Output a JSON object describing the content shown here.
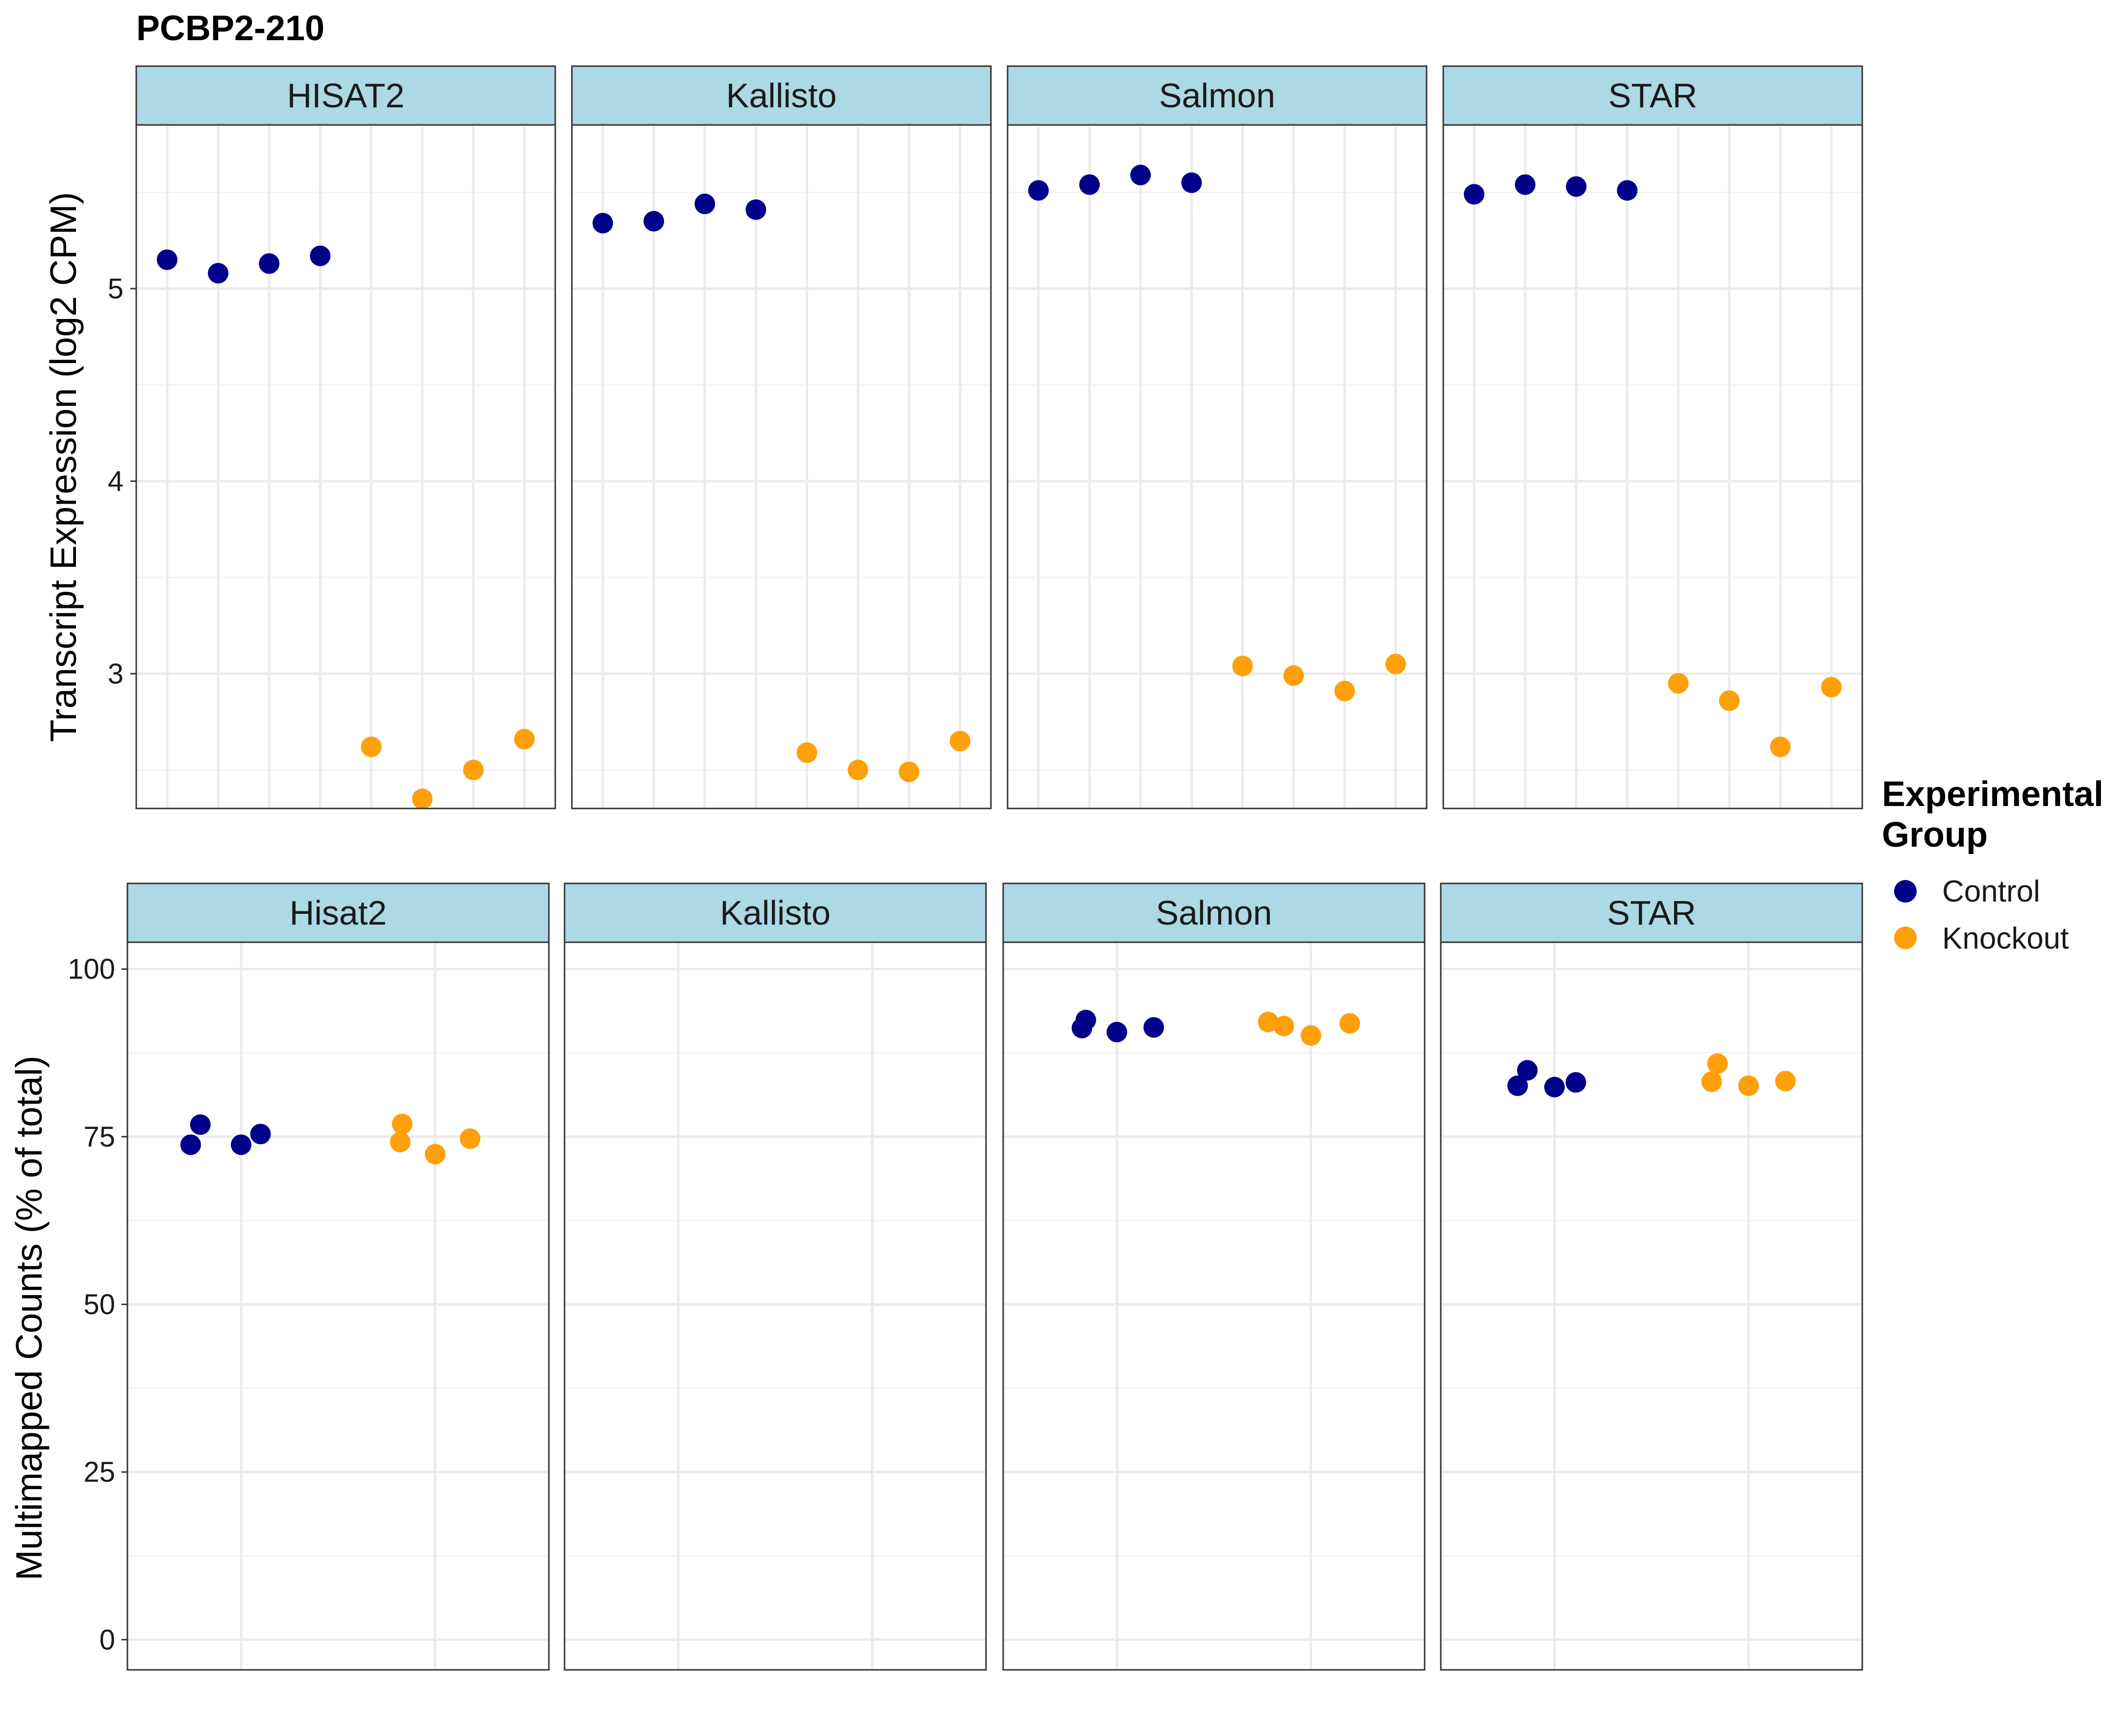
{
  "chart_data": {
    "type": "scatter",
    "title": "PCBP2-210",
    "colors": {
      "Control": "#00008B",
      "Knockout": "#FF9F0A"
    },
    "legend": {
      "title_lines": [
        "Experimental",
        "Group"
      ],
      "entries": [
        "Control",
        "Knockout"
      ],
      "placement": "right"
    },
    "grid": true,
    "rows": [
      {
        "ylabel": "Transcript Expression (log2 CPM)",
        "ylim": [
          2.3,
          5.85
        ],
        "yticks": [
          3,
          4,
          5
        ],
        "ytick_labels": [
          "3",
          "4",
          "5"
        ],
        "x_positions": 8,
        "panels": [
          {
            "strip": "HISAT2",
            "points": [
              {
                "x": 1,
                "y": 5.15,
                "group": "Control"
              },
              {
                "x": 2,
                "y": 5.08,
                "group": "Control"
              },
              {
                "x": 3,
                "y": 5.13,
                "group": "Control"
              },
              {
                "x": 4,
                "y": 5.17,
                "group": "Control"
              },
              {
                "x": 5,
                "y": 2.62,
                "group": "Knockout"
              },
              {
                "x": 6,
                "y": 2.35,
                "group": "Knockout"
              },
              {
                "x": 7,
                "y": 2.5,
                "group": "Knockout"
              },
              {
                "x": 8,
                "y": 2.66,
                "group": "Knockout"
              }
            ]
          },
          {
            "strip": "Kallisto",
            "points": [
              {
                "x": 1,
                "y": 5.34,
                "group": "Control"
              },
              {
                "x": 2,
                "y": 5.35,
                "group": "Control"
              },
              {
                "x": 3,
                "y": 5.44,
                "group": "Control"
              },
              {
                "x": 4,
                "y": 5.41,
                "group": "Control"
              },
              {
                "x": 5,
                "y": 2.59,
                "group": "Knockout"
              },
              {
                "x": 6,
                "y": 2.5,
                "group": "Knockout"
              },
              {
                "x": 7,
                "y": 2.49,
                "group": "Knockout"
              },
              {
                "x": 8,
                "y": 2.65,
                "group": "Knockout"
              }
            ]
          },
          {
            "strip": "Salmon",
            "points": [
              {
                "x": 1,
                "y": 5.51,
                "group": "Control"
              },
              {
                "x": 2,
                "y": 5.54,
                "group": "Control"
              },
              {
                "x": 3,
                "y": 5.59,
                "group": "Control"
              },
              {
                "x": 4,
                "y": 5.55,
                "group": "Control"
              },
              {
                "x": 5,
                "y": 3.04,
                "group": "Knockout"
              },
              {
                "x": 6,
                "y": 2.99,
                "group": "Knockout"
              },
              {
                "x": 7,
                "y": 2.91,
                "group": "Knockout"
              },
              {
                "x": 8,
                "y": 3.05,
                "group": "Knockout"
              }
            ]
          },
          {
            "strip": "STAR",
            "points": [
              {
                "x": 1,
                "y": 5.49,
                "group": "Control"
              },
              {
                "x": 2,
                "y": 5.54,
                "group": "Control"
              },
              {
                "x": 3,
                "y": 5.53,
                "group": "Control"
              },
              {
                "x": 4,
                "y": 5.51,
                "group": "Control"
              },
              {
                "x": 5,
                "y": 2.95,
                "group": "Knockout"
              },
              {
                "x": 6,
                "y": 2.86,
                "group": "Knockout"
              },
              {
                "x": 7,
                "y": 2.62,
                "group": "Knockout"
              },
              {
                "x": 8,
                "y": 2.93,
                "group": "Knockout"
              }
            ]
          }
        ]
      },
      {
        "ylabel": "Multimapped Counts (% of total)",
        "ylim": [
          -4.5,
          104
        ],
        "yticks": [
          0,
          25,
          50,
          75,
          100
        ],
        "ytick_labels": [
          "0",
          "25",
          "50",
          "75",
          "100"
        ],
        "x_positions": 2,
        "panels": [
          {
            "strip": "Hisat2",
            "points": [
              {
                "x": 0.74,
                "y": 73.8,
                "group": "Control"
              },
              {
                "x": 0.79,
                "y": 76.8,
                "group": "Control"
              },
              {
                "x": 1.0,
                "y": 73.8,
                "group": "Control"
              },
              {
                "x": 1.1,
                "y": 75.4,
                "group": "Control"
              },
              {
                "x": 1.82,
                "y": 74.2,
                "group": "Knockout"
              },
              {
                "x": 1.83,
                "y": 76.9,
                "group": "Knockout"
              },
              {
                "x": 2.0,
                "y": 72.4,
                "group": "Knockout"
              },
              {
                "x": 2.18,
                "y": 74.7,
                "group": "Knockout"
              }
            ]
          },
          {
            "strip": "Kallisto",
            "points": []
          },
          {
            "strip": "Salmon",
            "points": [
              {
                "x": 0.82,
                "y": 91.2,
                "group": "Control"
              },
              {
                "x": 0.84,
                "y": 92.4,
                "group": "Control"
              },
              {
                "x": 1.0,
                "y": 90.6,
                "group": "Control"
              },
              {
                "x": 1.19,
                "y": 91.3,
                "group": "Control"
              },
              {
                "x": 1.78,
                "y": 92.1,
                "group": "Knockout"
              },
              {
                "x": 1.86,
                "y": 91.5,
                "group": "Knockout"
              },
              {
                "x": 2.0,
                "y": 90.1,
                "group": "Knockout"
              },
              {
                "x": 2.2,
                "y": 91.9,
                "group": "Knockout"
              }
            ]
          },
          {
            "strip": "STAR",
            "points": [
              {
                "x": 0.81,
                "y": 82.6,
                "group": "Control"
              },
              {
                "x": 0.86,
                "y": 84.9,
                "group": "Control"
              },
              {
                "x": 1.0,
                "y": 82.4,
                "group": "Control"
              },
              {
                "x": 1.11,
                "y": 83.1,
                "group": "Control"
              },
              {
                "x": 1.81,
                "y": 83.2,
                "group": "Knockout"
              },
              {
                "x": 1.84,
                "y": 85.9,
                "group": "Knockout"
              },
              {
                "x": 2.0,
                "y": 82.6,
                "group": "Knockout"
              },
              {
                "x": 2.19,
                "y": 83.3,
                "group": "Knockout"
              }
            ]
          }
        ]
      }
    ]
  }
}
